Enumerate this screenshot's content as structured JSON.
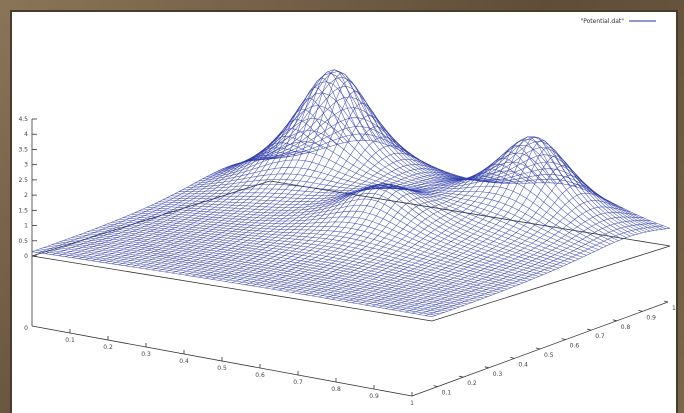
{
  "chart_data": {
    "type": "surface",
    "legend": {
      "label": "\"Potential.dat\"",
      "placement": "top-right",
      "color": "#1f2f9c"
    },
    "mesh_color": "#2c3aa8",
    "grid": false,
    "z_ticks": [
      "4.5",
      "4",
      "3.5",
      "3",
      "2.5",
      "2",
      "1.5",
      "1",
      "0.5",
      "0"
    ],
    "z_floor_tick": "0",
    "x_ticks": [
      "0.1",
      "0.2",
      "0.3",
      "0.4",
      "0.5",
      "0.6",
      "0.7",
      "0.8",
      "0.9",
      "1"
    ],
    "y_ticks": [
      "0.1",
      "0.2",
      "0.3",
      "0.4",
      "0.5",
      "0.6",
      "0.7",
      "0.8",
      "0.9",
      "1"
    ],
    "xlim": [
      0,
      1
    ],
    "ylim": [
      0,
      1
    ],
    "zlim": [
      0,
      4.5
    ],
    "peaks": [
      {
        "x": 0.25,
        "y": 0.85,
        "z": 4.5
      },
      {
        "x": 0.75,
        "y": 0.85,
        "z": 3.2
      },
      {
        "x": 0.55,
        "y": 0.55,
        "z": 1.6
      }
    ]
  }
}
